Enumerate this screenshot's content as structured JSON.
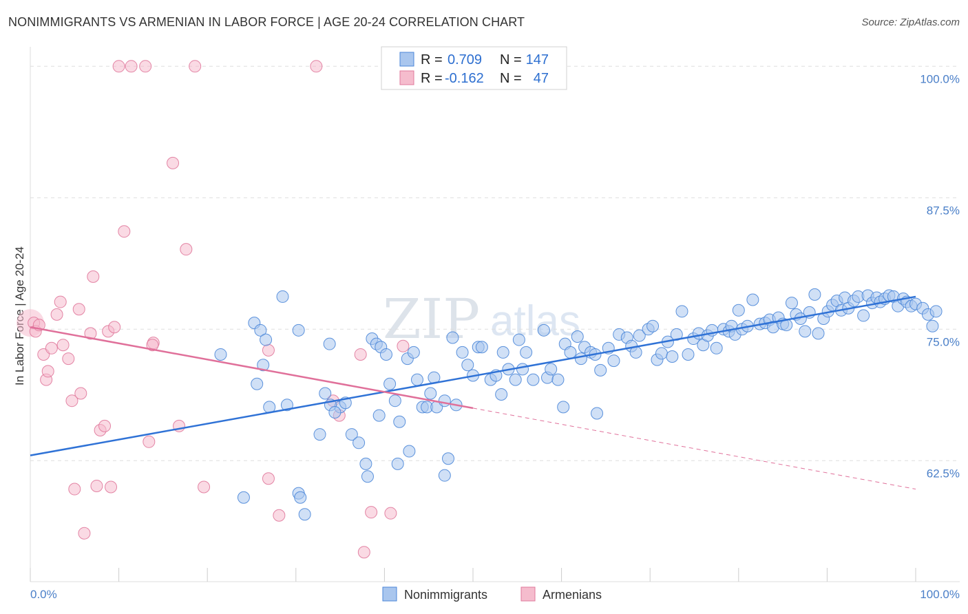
{
  "title": "NONIMMIGRANTS VS ARMENIAN IN LABOR FORCE | AGE 20-24 CORRELATION CHART",
  "source": "Source: ZipAtlas.com",
  "watermark": {
    "zip": "ZIP",
    "atlas": "atlas"
  },
  "colors": {
    "blue": "#4a86d8",
    "blue_fill": "#a9c6ee",
    "pink": "#e0789b",
    "pink_fill": "#f5bccd",
    "tick": "#4a7fc8"
  },
  "chart_data": {
    "type": "scatter",
    "title": "NONIMMIGRANTS VS ARMENIAN IN LABOR FORCE | AGE 20-24 CORRELATION CHART",
    "ylabel": "In Labor Force | Age 20-24",
    "xlabel": "",
    "xlim": [
      0,
      100
    ],
    "ylim": [
      51.0,
      101.1
    ],
    "x_tick_labels": {
      "left": "0.0%",
      "right": "100.0%"
    },
    "y_ticks": [
      {
        "value": 100.0,
        "label": "100.0%"
      },
      {
        "value": 87.5,
        "label": "87.5%"
      },
      {
        "value": 75.0,
        "label": "75.0%"
      },
      {
        "value": 62.5,
        "label": "62.5%"
      }
    ],
    "stats": [
      {
        "series": "Nonimmigrants",
        "r_label": "R =",
        "r": "0.709",
        "n_label": "N =",
        "n": "147"
      },
      {
        "series": "Armenians",
        "r_label": "R =",
        "r": "-0.162",
        "n_label": "N =",
        "n": "47"
      }
    ],
    "legend": [
      "Nonimmigrants",
      "Armenians"
    ],
    "series": [
      {
        "name": "Nonimmigrants",
        "color": "#4a86d8",
        "trend": {
          "x0": 0,
          "y0": 63.0,
          "x1": 100,
          "y1": 78.1,
          "x_end": 100
        },
        "points": [
          [
            21.5,
            72.6
          ],
          [
            25.3,
            75.6
          ],
          [
            25.6,
            69.8
          ],
          [
            26.0,
            74.9
          ],
          [
            26.3,
            71.6
          ],
          [
            26.6,
            74.0
          ],
          [
            27.0,
            67.6
          ],
          [
            28.5,
            78.1
          ],
          [
            29.0,
            67.8
          ],
          [
            30.3,
            74.9
          ],
          [
            30.3,
            59.4
          ],
          [
            30.5,
            59.0
          ],
          [
            31.0,
            57.4
          ],
          [
            24.1,
            59.0
          ],
          [
            32.7,
            65.0
          ],
          [
            33.3,
            68.9
          ],
          [
            35.0,
            67.6
          ],
          [
            35.6,
            68.0
          ],
          [
            33.9,
            67.8
          ],
          [
            33.8,
            73.6
          ],
          [
            34.4,
            67.1
          ],
          [
            36.3,
            65.0
          ],
          [
            37.1,
            64.2
          ],
          [
            37.9,
            62.2
          ],
          [
            38.1,
            61.0
          ],
          [
            38.6,
            74.1
          ],
          [
            39.1,
            73.6
          ],
          [
            39.6,
            73.3
          ],
          [
            39.4,
            66.8
          ],
          [
            40.2,
            72.6
          ],
          [
            40.6,
            69.8
          ],
          [
            41.2,
            68.2
          ],
          [
            41.5,
            62.2
          ],
          [
            41.7,
            66.2
          ],
          [
            42.6,
            72.2
          ],
          [
            42.8,
            63.4
          ],
          [
            43.3,
            72.8
          ],
          [
            43.7,
            70.2
          ],
          [
            44.3,
            67.6
          ],
          [
            44.8,
            67.6
          ],
          [
            45.2,
            68.9
          ],
          [
            45.6,
            70.4
          ],
          [
            45.9,
            67.6
          ],
          [
            47.2,
            62.7
          ],
          [
            46.8,
            61.1
          ],
          [
            47.7,
            74.2
          ],
          [
            48.1,
            67.8
          ],
          [
            48.8,
            72.8
          ],
          [
            49.4,
            71.6
          ],
          [
            50.0,
            70.6
          ],
          [
            50.6,
            73.3
          ],
          [
            51.0,
            73.3
          ],
          [
            52.0,
            70.2
          ],
          [
            52.6,
            70.6
          ],
          [
            53.2,
            68.8
          ],
          [
            53.4,
            72.8
          ],
          [
            54.0,
            71.2
          ],
          [
            54.8,
            70.2
          ],
          [
            55.2,
            74.0
          ],
          [
            55.6,
            71.2
          ],
          [
            56.0,
            72.8
          ],
          [
            56.8,
            70.2
          ],
          [
            58.0,
            74.9
          ],
          [
            58.4,
            70.4
          ],
          [
            58.8,
            71.2
          ],
          [
            59.6,
            70.2
          ],
          [
            60.2,
            67.6
          ],
          [
            60.4,
            73.6
          ],
          [
            61.0,
            72.8
          ],
          [
            61.8,
            74.3
          ],
          [
            62.2,
            72.2
          ],
          [
            62.6,
            73.3
          ],
          [
            63.3,
            72.8
          ],
          [
            63.8,
            72.6
          ],
          [
            64.0,
            67.0
          ],
          [
            64.4,
            71.1
          ],
          [
            65.3,
            73.2
          ],
          [
            65.9,
            72.0
          ],
          [
            66.5,
            74.5
          ],
          [
            67.4,
            74.2
          ],
          [
            67.9,
            73.4
          ],
          [
            68.4,
            72.8
          ],
          [
            68.8,
            74.4
          ],
          [
            69.8,
            75.0
          ],
          [
            70.3,
            75.3
          ],
          [
            70.8,
            72.1
          ],
          [
            71.3,
            72.7
          ],
          [
            72.0,
            73.8
          ],
          [
            72.5,
            72.4
          ],
          [
            73.0,
            74.5
          ],
          [
            73.6,
            76.7
          ],
          [
            74.3,
            72.6
          ],
          [
            74.9,
            74.1
          ],
          [
            75.5,
            74.6
          ],
          [
            76.0,
            73.5
          ],
          [
            76.5,
            74.4
          ],
          [
            77.0,
            74.9
          ],
          [
            77.5,
            73.2
          ],
          [
            78.3,
            75.0
          ],
          [
            78.9,
            74.8
          ],
          [
            79.2,
            75.3
          ],
          [
            79.6,
            74.5
          ],
          [
            80.0,
            76.8
          ],
          [
            80.4,
            75.0
          ],
          [
            81.0,
            75.3
          ],
          [
            81.6,
            77.8
          ],
          [
            82.4,
            75.5
          ],
          [
            83.0,
            75.6
          ],
          [
            83.5,
            75.9
          ],
          [
            83.9,
            75.2
          ],
          [
            84.5,
            76.1
          ],
          [
            85.0,
            75.5
          ],
          [
            85.4,
            75.4
          ],
          [
            86.0,
            77.5
          ],
          [
            86.5,
            76.4
          ],
          [
            87.0,
            76.0
          ],
          [
            87.5,
            74.8
          ],
          [
            88.0,
            76.6
          ],
          [
            88.6,
            78.3
          ],
          [
            89.0,
            74.6
          ],
          [
            89.6,
            76.0
          ],
          [
            90.1,
            76.7
          ],
          [
            90.6,
            77.3
          ],
          [
            91.1,
            77.7
          ],
          [
            91.6,
            76.8
          ],
          [
            92.0,
            78.0
          ],
          [
            92.4,
            77.0
          ],
          [
            93.0,
            77.7
          ],
          [
            93.5,
            78.1
          ],
          [
            94.1,
            76.3
          ],
          [
            94.6,
            78.2
          ],
          [
            95.1,
            77.5
          ],
          [
            95.6,
            78.0
          ],
          [
            96.0,
            77.6
          ],
          [
            96.5,
            77.9
          ],
          [
            97.0,
            78.2
          ],
          [
            97.5,
            78.1
          ],
          [
            98.0,
            77.2
          ],
          [
            98.6,
            77.9
          ],
          [
            99.0,
            77.6
          ],
          [
            99.5,
            77.2
          ],
          [
            100.0,
            77.4
          ],
          [
            100.8,
            77.0
          ],
          [
            101.4,
            76.4
          ],
          [
            101.9,
            75.3
          ],
          [
            102.3,
            76.7
          ],
          [
            46.8,
            68.2
          ]
        ]
      },
      {
        "name": "Armenians",
        "color": "#e0789b",
        "trend": {
          "x0": 0,
          "y0": 75.2,
          "x1": 100,
          "y1": 59.8,
          "x_solid_end": 50.0,
          "x_end": 100
        },
        "points": [
          [
            0.4,
            75.6
          ],
          [
            0.6,
            74.8
          ],
          [
            1.0,
            75.4
          ],
          [
            1.5,
            72.6
          ],
          [
            1.8,
            70.2
          ],
          [
            2.0,
            71.0
          ],
          [
            2.4,
            73.2
          ],
          [
            3.0,
            76.4
          ],
          [
            3.4,
            77.6
          ],
          [
            3.7,
            73.5
          ],
          [
            4.3,
            72.2
          ],
          [
            4.7,
            68.2
          ],
          [
            5.0,
            59.8
          ],
          [
            5.5,
            76.9
          ],
          [
            5.7,
            68.9
          ],
          [
            6.1,
            55.6
          ],
          [
            6.8,
            74.6
          ],
          [
            7.1,
            80.0
          ],
          [
            7.5,
            60.1
          ],
          [
            7.9,
            65.4
          ],
          [
            8.4,
            65.8
          ],
          [
            8.8,
            74.8
          ],
          [
            9.1,
            60.0
          ],
          [
            9.5,
            75.2
          ],
          [
            10.0,
            100.0
          ],
          [
            10.6,
            84.3
          ],
          [
            11.4,
            100.0
          ],
          [
            13.0,
            100.0
          ],
          [
            13.4,
            64.3
          ],
          [
            13.9,
            73.7
          ],
          [
            16.1,
            90.8
          ],
          [
            16.8,
            65.8
          ],
          [
            17.6,
            82.6
          ],
          [
            18.6,
            100.0
          ],
          [
            19.6,
            60.0
          ],
          [
            26.9,
            73.0
          ],
          [
            26.9,
            60.8
          ],
          [
            28.1,
            57.3
          ],
          [
            32.3,
            100.0
          ],
          [
            34.2,
            68.2
          ],
          [
            34.9,
            66.8
          ],
          [
            37.3,
            72.6
          ],
          [
            37.7,
            53.8
          ],
          [
            38.5,
            57.6
          ],
          [
            40.7,
            57.5
          ],
          [
            42.1,
            73.4
          ],
          [
            13.8,
            73.5
          ]
        ]
      }
    ]
  }
}
